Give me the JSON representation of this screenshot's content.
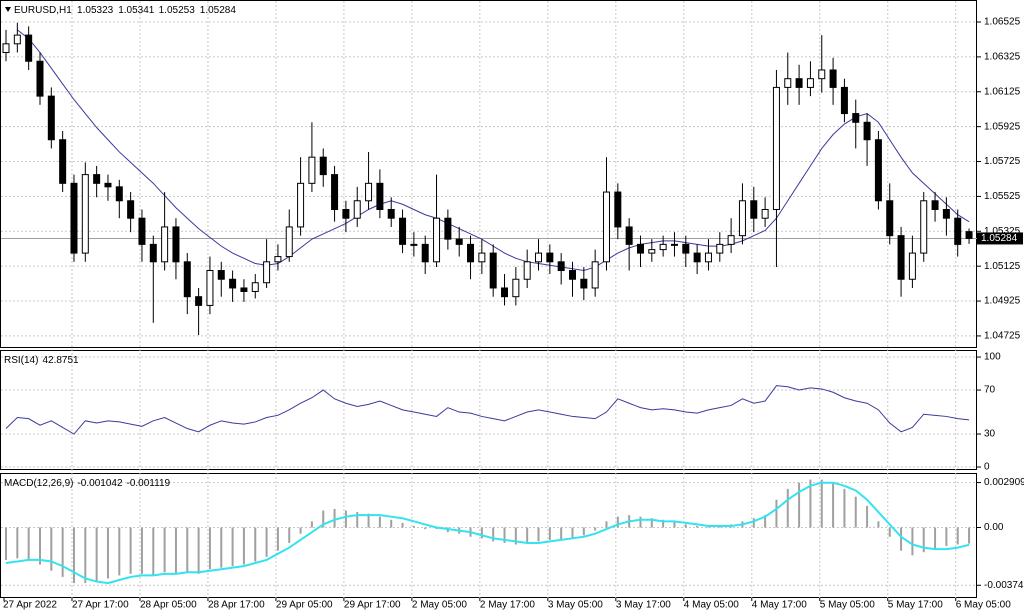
{
  "chart_data": [
    {
      "type": "candlestick",
      "title": "EURUSD,H1",
      "categories": [
        "27 Apr 2022",
        null,
        null,
        null,
        null,
        null,
        "27 Apr 17:00",
        null,
        null,
        null,
        null,
        null,
        "28 Apr 05:00",
        null,
        null,
        null,
        null,
        null,
        "28 Apr 17:00",
        null,
        null,
        null,
        null,
        null,
        "29 Apr 05:00",
        null,
        null,
        null,
        null,
        null,
        "29 Apr 17:00",
        null,
        null,
        null,
        null,
        null,
        "2 May 05:00",
        null,
        null,
        null,
        null,
        null,
        "2 May 17:00",
        null,
        null,
        null,
        null,
        null,
        "3 May 05:00",
        null,
        null,
        null,
        null,
        null,
        "3 May 17:00",
        null,
        null,
        null,
        null,
        null,
        "4 May 05:00",
        null,
        null,
        null,
        null,
        null,
        "4 May 17:00",
        null,
        null,
        null,
        null,
        null,
        "5 May 05:00",
        null,
        null,
        null,
        null,
        null,
        "5 May 17:00",
        null,
        null,
        null,
        null,
        null,
        "6 May 05:00",
        null
      ],
      "open": [
        1.0635,
        1.064,
        1.0645,
        1.063,
        1.061,
        1.0585,
        1.056,
        1.052,
        1.0565,
        1.056,
        1.0558,
        1.055,
        1.054,
        1.0525,
        1.0515,
        1.0535,
        1.0515,
        1.0495,
        1.049,
        1.051,
        1.0505,
        1.05,
        1.0498,
        1.0503,
        1.0515,
        1.0518,
        1.0535,
        1.056,
        1.0575,
        1.0565,
        1.0545,
        1.054,
        1.055,
        1.056,
        1.0545,
        1.054,
        1.0525,
        1.0525,
        1.0515,
        1.054,
        1.0528,
        1.0525,
        1.0515,
        1.052,
        1.05,
        1.0495,
        1.0505,
        1.0515,
        1.052,
        1.0515,
        1.051,
        1.0505,
        1.05,
        1.0515,
        1.0555,
        1.0535,
        1.0525,
        1.052,
        1.0522,
        1.0525,
        1.0525,
        1.052,
        1.0515,
        1.052,
        1.0525,
        1.053,
        1.055,
        1.054,
        1.0545,
        1.0615,
        1.062,
        1.0615,
        1.062,
        1.0625,
        1.0615,
        1.06,
        1.0595,
        1.0585,
        1.055,
        1.053,
        1.0505,
        1.052,
        1.055,
        1.0545,
        1.054,
        1.05323
      ],
      "high": [
        1.0648,
        1.0652,
        1.065,
        1.0635,
        1.0615,
        1.059,
        1.0565,
        1.0572,
        1.057,
        1.0565,
        1.0562,
        1.0555,
        1.0545,
        1.053,
        1.0555,
        1.054,
        1.052,
        1.05,
        1.0518,
        1.0515,
        1.051,
        1.0505,
        1.0508,
        1.0528,
        1.0525,
        1.0545,
        1.0575,
        1.0595,
        1.058,
        1.057,
        1.055,
        1.0558,
        1.0578,
        1.0568,
        1.0552,
        1.0545,
        1.0532,
        1.053,
        1.0565,
        1.0545,
        1.0535,
        1.053,
        1.0528,
        1.0525,
        1.0508,
        1.0512,
        1.0522,
        1.0528,
        1.0525,
        1.052,
        1.0515,
        1.0512,
        1.0522,
        1.0575,
        1.056,
        1.054,
        1.053,
        1.0528,
        1.053,
        1.0532,
        1.053,
        1.0525,
        1.0528,
        1.0532,
        1.054,
        1.056,
        1.0558,
        1.0552,
        1.0625,
        1.0635,
        1.0628,
        1.063,
        1.0645,
        1.0632,
        1.062,
        1.0608,
        1.06,
        1.059,
        1.056,
        1.0535,
        1.053,
        1.0555,
        1.0555,
        1.0552,
        1.0545,
        1.05341
      ],
      "low": [
        1.063,
        1.0635,
        1.0625,
        1.0605,
        1.058,
        1.0555,
        1.0515,
        1.0515,
        1.0552,
        1.055,
        1.054,
        1.0532,
        1.0515,
        1.048,
        1.051,
        1.0505,
        1.0485,
        1.0473,
        1.0485,
        1.0495,
        1.0492,
        1.0492,
        1.0494,
        1.05,
        1.051,
        1.0515,
        1.053,
        1.0555,
        1.0558,
        1.0538,
        1.0532,
        1.0535,
        1.0545,
        1.054,
        1.0535,
        1.052,
        1.0518,
        1.0508,
        1.0512,
        1.0522,
        1.0518,
        1.0505,
        1.0508,
        1.0495,
        1.049,
        1.049,
        1.05,
        1.051,
        1.0508,
        1.0502,
        1.0495,
        1.0493,
        1.0495,
        1.051,
        1.0528,
        1.051,
        1.0512,
        1.0515,
        1.0518,
        1.0518,
        1.0512,
        1.0508,
        1.051,
        1.0515,
        1.052,
        1.0525,
        1.0532,
        1.0535,
        1.0512,
        1.0605,
        1.0605,
        1.061,
        1.0612,
        1.0605,
        1.0595,
        1.058,
        1.057,
        1.0545,
        1.0525,
        1.0495,
        1.05,
        1.0515,
        1.0538,
        1.053,
        1.0518,
        1.05253
      ],
      "close": [
        1.064,
        1.0645,
        1.063,
        1.061,
        1.0585,
        1.056,
        1.052,
        1.0565,
        1.056,
        1.0558,
        1.055,
        1.054,
        1.0525,
        1.0515,
        1.0535,
        1.0515,
        1.0495,
        1.049,
        1.051,
        1.0505,
        1.05,
        1.0498,
        1.0503,
        1.0515,
        1.0518,
        1.0535,
        1.056,
        1.0575,
        1.0565,
        1.0545,
        1.054,
        1.055,
        1.056,
        1.0545,
        1.054,
        1.0525,
        1.0525,
        1.0515,
        1.054,
        1.0528,
        1.0525,
        1.0515,
        1.052,
        1.05,
        1.0495,
        1.0505,
        1.0515,
        1.052,
        1.0515,
        1.051,
        1.0505,
        1.05,
        1.0515,
        1.0555,
        1.0535,
        1.0525,
        1.052,
        1.0522,
        1.0525,
        1.0525,
        1.052,
        1.0515,
        1.052,
        1.0525,
        1.053,
        1.055,
        1.054,
        1.0545,
        1.0615,
        1.062,
        1.0615,
        1.062,
        1.0625,
        1.0615,
        1.06,
        1.0595,
        1.0585,
        1.055,
        1.053,
        1.0505,
        1.052,
        1.055,
        1.0545,
        1.054,
        1.0525,
        1.05284
      ],
      "ma_values": [
        null,
        1.0648,
        1.0643,
        1.0635,
        1.0626,
        1.0617,
        1.0608,
        1.06,
        1.0592,
        1.0585,
        1.0578,
        1.0572,
        1.0566,
        1.056,
        1.0553,
        1.0546,
        1.054,
        1.0534,
        1.0529,
        1.0524,
        1.052,
        1.0517,
        1.0514,
        1.0513,
        1.0514,
        1.0518,
        1.0523,
        1.0528,
        1.0531,
        1.0534,
        1.0537,
        1.0541,
        1.0545,
        1.0548,
        1.055,
        1.0548,
        1.0545,
        1.0542,
        1.054,
        1.0537,
        1.0534,
        1.0531,
        1.0528,
        1.0524,
        1.052,
        1.0517,
        1.0515,
        1.0514,
        1.0513,
        1.0512,
        1.0511,
        1.051,
        1.0512,
        1.0516,
        1.052,
        1.0523,
        1.0525,
        1.0526,
        1.0527,
        1.0527,
        1.0526,
        1.0525,
        1.0524,
        1.0524,
        1.0525,
        1.0527,
        1.053,
        1.0533,
        1.054,
        1.055,
        1.056,
        1.057,
        1.058,
        1.0588,
        1.0594,
        1.0598,
        1.06,
        1.0595,
        1.0585,
        1.0575,
        1.0566,
        1.056,
        1.0554,
        1.0548,
        1.0542,
        1.0538
      ],
      "ma_color": "#3a3a9c",
      "up_color": "#ffffff",
      "down_color": "#000000",
      "ylim": [
        1.04673,
        1.06634
      ],
      "yticks": [
        1.06525,
        1.06325,
        1.06125,
        1.05925,
        1.05725,
        1.05525,
        1.05325,
        1.05125,
        1.04925,
        1.04725
      ],
      "grid": true
    },
    {
      "type": "line",
      "title": "RSI(14)",
      "color": "#3a3a9c",
      "values": [
        35,
        45,
        44,
        38,
        42,
        36,
        30,
        42,
        40,
        42,
        41,
        39,
        37,
        42,
        45,
        40,
        35,
        32,
        38,
        42,
        40,
        39,
        41,
        45,
        47,
        52,
        58,
        63,
        70,
        62,
        58,
        55,
        57,
        60,
        56,
        52,
        50,
        48,
        46,
        54,
        50,
        49,
        46,
        44,
        42,
        46,
        50,
        52,
        50,
        48,
        46,
        45,
        44,
        50,
        62,
        58,
        54,
        52,
        53,
        52,
        50,
        49,
        52,
        54,
        56,
        62,
        58,
        60,
        74,
        73,
        70,
        72,
        71,
        68,
        63,
        60,
        58,
        52,
        40,
        32,
        36,
        48,
        47,
        46,
        44,
        42.8751
      ],
      "ylim": [
        -1.8,
        105.5
      ],
      "yticks": [
        0,
        30,
        70,
        100
      ],
      "grid": true
    },
    {
      "type": "macd",
      "title": "MACD(12,26,9)",
      "color": "#a0a0a0",
      "signal_color": "#33e3ef",
      "values": [
        -0.0021,
        -0.002,
        -0.0021,
        -0.0024,
        -0.0028,
        -0.0032,
        -0.0036,
        -0.0036,
        -0.0035,
        -0.0033,
        -0.0031,
        -0.003,
        -0.003,
        -0.0031,
        -0.0029,
        -0.003,
        -0.0029,
        -0.003,
        -0.0027,
        -0.0026,
        -0.0025,
        -0.0024,
        -0.0022,
        -0.0019,
        -0.0015,
        -0.001,
        -0.0004,
        0.0004,
        0.0011,
        0.0012,
        0.0011,
        0.001,
        0.0009,
        0.0007,
        0.0005,
        0.0003,
        0.0001,
        -0.0001,
        -0.0001,
        -0.0003,
        -0.0004,
        -0.0006,
        -0.0007,
        -0.0009,
        -0.001,
        -0.0011,
        -0.001,
        -0.0009,
        -0.0008,
        -0.0008,
        -0.0007,
        -0.0005,
        -0.0002,
        0.0004,
        0.0007,
        0.0008,
        0.0007,
        0.0006,
        0.0005,
        0.0004,
        0.0002,
        0.0001,
        0.0001,
        0.0001,
        0.0002,
        0.0004,
        0.0006,
        0.0008,
        0.0018,
        0.0025,
        0.0029,
        0.0031,
        0.0031,
        0.0029,
        0.0025,
        0.002,
        0.0014,
        0.0004,
        -0.0006,
        -0.0015,
        -0.0018,
        -0.0016,
        -0.0014,
        -0.0012,
        -0.0011,
        -0.001042
      ],
      "signal": [
        -0.0023,
        -0.0022,
        -0.0021,
        -0.0021,
        -0.0022,
        -0.0025,
        -0.0029,
        -0.0033,
        -0.0035,
        -0.0036,
        -0.0034,
        -0.0032,
        -0.0031,
        -0.0031,
        -0.003,
        -0.003,
        -0.0029,
        -0.0029,
        -0.0028,
        -0.0027,
        -0.0026,
        -0.0025,
        -0.0023,
        -0.0021,
        -0.0017,
        -0.0013,
        -0.0008,
        -0.0003,
        0.0002,
        0.0005,
        0.0007,
        0.0008,
        0.0008,
        0.0008,
        0.0007,
        0.0006,
        0.0004,
        0.0002,
        0.0,
        -0.0001,
        -0.0002,
        -0.0003,
        -0.0005,
        -0.0007,
        -0.0008,
        -0.0009,
        -0.001,
        -0.001,
        -0.0009,
        -0.0008,
        -0.0007,
        -0.0006,
        -0.0004,
        -0.0001,
        0.0002,
        0.0004,
        0.0005,
        0.0005,
        0.0004,
        0.0004,
        0.0003,
        0.0002,
        0.0001,
        0.0001,
        0.0001,
        0.0002,
        0.0004,
        0.0007,
        0.0012,
        0.0018,
        0.0023,
        0.0027,
        0.0029,
        0.0029,
        0.0027,
        0.0024,
        0.0018,
        0.001,
        0.0002,
        -0.0006,
        -0.0011,
        -0.0013,
        -0.0014,
        -0.0014,
        -0.0013,
        -0.001119
      ],
      "ylim": [
        -0.0045,
        0.0034
      ],
      "yticks": [
        0.002909,
        {
          "value": 0,
          "label": "0.00"
        },
        -0.00374
      ],
      "grid": true
    }
  ]
}
